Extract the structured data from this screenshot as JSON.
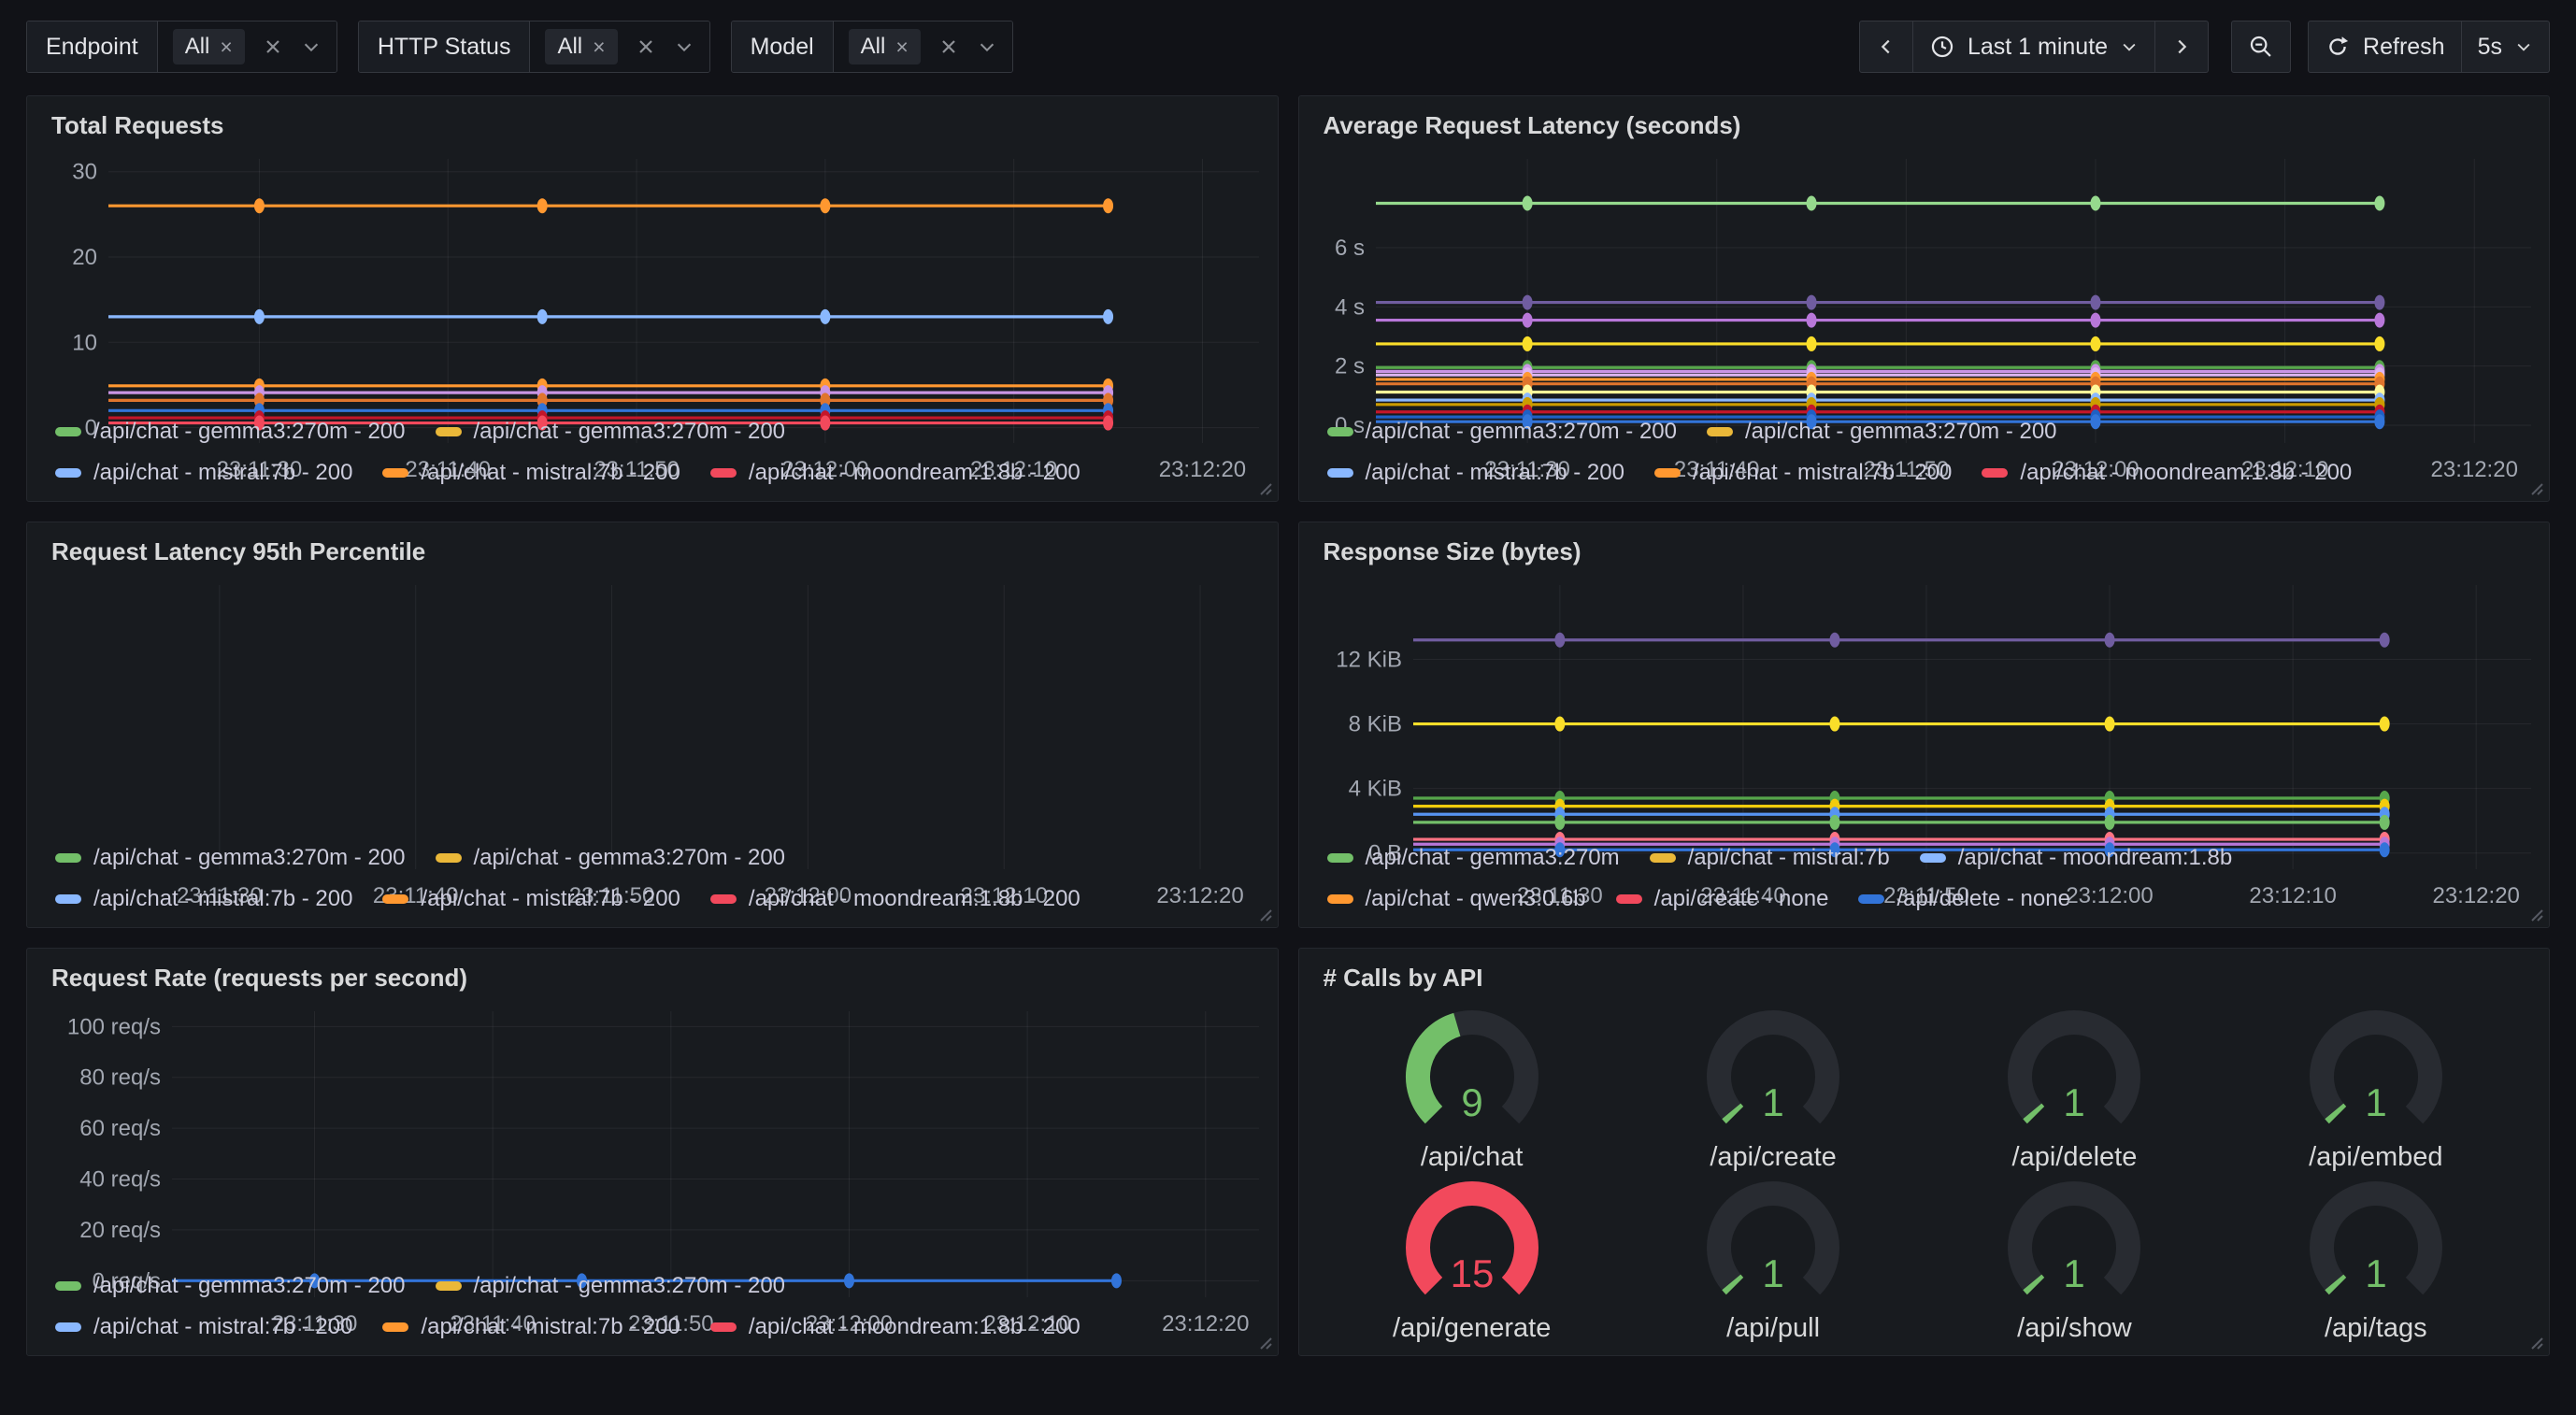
{
  "toolbar": {
    "filters": [
      {
        "label": "Endpoint",
        "value": "All"
      },
      {
        "label": "HTTP Status",
        "value": "All"
      },
      {
        "label": "Model",
        "value": "All"
      }
    ],
    "time": {
      "range_label": "Last 1 minute",
      "refresh_label": "Refresh",
      "interval": "5s"
    }
  },
  "palette": {
    "page_bg": "#111217",
    "panel_bg": "#181B1F",
    "green": "#73BF69",
    "red": "#F2495C",
    "yellow": "#EAB839",
    "orange": "#FF9830",
    "blue": "#5794F2",
    "text": "#D8D9DA",
    "axis_text": "#A2A7B1"
  },
  "panels": [
    {
      "type": "timeseries",
      "title": "Total Requests",
      "margin_left": 87,
      "h_grid": true,
      "y_min": -1.8,
      "y_max": 31.5,
      "y_ticks": [
        {
          "v": 30,
          "label": "30"
        },
        {
          "v": 20,
          "label": "20"
        },
        {
          "v": 10,
          "label": "10"
        },
        {
          "v": 0,
          "label": "0"
        }
      ],
      "x_ticks": [
        "23:11:30",
        "23:11:40",
        "23:11:50",
        "23:12:00",
        "23:12:10",
        "23:12:20"
      ],
      "series": [
        {
          "color": "#FF9830",
          "value": 26
        },
        {
          "color": "#8AB8FF",
          "value": 13
        },
        {
          "color": "#FF9830",
          "value": 4.9
        },
        {
          "color": "#CA95E5",
          "value": 4.1
        },
        {
          "color": "#E0752D",
          "value": 3.2
        },
        {
          "color": "#3274D9",
          "value": 2.0
        },
        {
          "color": "#C4162A",
          "value": 1.15
        },
        {
          "color": "#F2495C",
          "value": 0.55
        }
      ],
      "legend": [
        [
          {
            "color": "#73BF69",
            "label": "/api/chat - gemma3:270m - 200"
          },
          {
            "color": "#EAB839",
            "label": "/api/chat - gemma3:270m - 200"
          }
        ],
        [
          {
            "color": "#8AB8FF",
            "label": "/api/chat - mistral:7b - 200"
          },
          {
            "color": "#FF9830",
            "label": "/api/chat - mistral:7b - 200"
          },
          {
            "color": "#F2495C",
            "label": "/api/chat - moondream:1.8b - 200"
          }
        ]
      ]
    },
    {
      "type": "timeseries",
      "title": "Average Request Latency (seconds)",
      "margin_left": 82,
      "h_grid": true,
      "y_min": -0.6,
      "y_max": 9.0,
      "y_ticks": [
        {
          "v": 6,
          "label": "6 s"
        },
        {
          "v": 4,
          "label": "4 s"
        },
        {
          "v": 2,
          "label": "2 s"
        },
        {
          "v": 0,
          "label": "0 s"
        }
      ],
      "x_ticks": [
        "23:11:30",
        "23:11:40",
        "23:11:50",
        "23:12:00",
        "23:12:10",
        "23:12:20"
      ],
      "series": [
        {
          "color": "#96D98D",
          "value": 7.5
        },
        {
          "color": "#705DA0",
          "value": 4.15
        },
        {
          "color": "#B877D9",
          "value": 3.55
        },
        {
          "color": "#FADE2A",
          "value": 2.75
        },
        {
          "color": "#56A64B",
          "value": 1.95
        },
        {
          "color": "#CA95E5",
          "value": 1.82
        },
        {
          "color": "#DEB6F2",
          "value": 1.7
        },
        {
          "color": "#FF9830",
          "value": 1.55
        },
        {
          "color": "#E0752D",
          "value": 1.4
        },
        {
          "color": "#FFF899",
          "value": 1.12
        },
        {
          "color": "#8AB8FF",
          "value": 0.85
        },
        {
          "color": "#CC9D00",
          "value": 0.7
        },
        {
          "color": "#C4162A",
          "value": 0.45
        },
        {
          "color": "#1F60C4",
          "value": 0.28
        },
        {
          "color": "#3274D9",
          "value": 0.12
        }
      ],
      "legend": [
        [
          {
            "color": "#73BF69",
            "label": "/api/chat - gemma3:270m - 200"
          },
          {
            "color": "#EAB839",
            "label": "/api/chat - gemma3:270m - 200"
          }
        ],
        [
          {
            "color": "#8AB8FF",
            "label": "/api/chat - mistral:7b - 200"
          },
          {
            "color": "#FF9830",
            "label": "/api/chat - mistral:7b - 200"
          },
          {
            "color": "#F2495C",
            "label": "/api/chat - moondream:1.8b - 200"
          }
        ]
      ]
    },
    {
      "type": "timeseries",
      "title": "Request Latency 95th Percentile",
      "margin_left": 38,
      "h_grid": false,
      "y_min": 0,
      "y_max": 1,
      "y_ticks": [],
      "x_ticks": [
        "23:11:30",
        "23:11:40",
        "23:11:50",
        "23:12:00",
        "23:12:10",
        "23:12:20"
      ],
      "series": [],
      "legend": [
        [
          {
            "color": "#73BF69",
            "label": "/api/chat - gemma3:270m - 200"
          },
          {
            "color": "#EAB839",
            "label": "/api/chat - gemma3:270m - 200"
          }
        ],
        [
          {
            "color": "#8AB8FF",
            "label": "/api/chat - mistral:7b - 200"
          },
          {
            "color": "#FF9830",
            "label": "/api/chat - mistral:7b - 200"
          },
          {
            "color": "#F2495C",
            "label": "/api/chat - moondream:1.8b - 200"
          }
        ]
      ]
    },
    {
      "type": "timeseries",
      "title": "Response Size (bytes)",
      "margin_left": 122,
      "h_grid": true,
      "y_min": -1.0,
      "y_max": 16.6,
      "y_ticks": [
        {
          "v": 12,
          "label": "12 KiB"
        },
        {
          "v": 8,
          "label": "8 KiB"
        },
        {
          "v": 4,
          "label": "4 KiB"
        },
        {
          "v": 0,
          "label": "0 B"
        }
      ],
      "x_ticks": [
        "23:11:30",
        "23:11:40",
        "23:11:50",
        "23:12:00",
        "23:12:10",
        "23:12:20"
      ],
      "series": [
        {
          "color": "#705DA0",
          "value": 13.2
        },
        {
          "color": "#FADE2A",
          "value": 8.0
        },
        {
          "color": "#56A64B",
          "value": 3.4
        },
        {
          "color": "#F2CC0C",
          "value": 2.9
        },
        {
          "color": "#5794F2",
          "value": 2.4
        },
        {
          "color": "#73BF69",
          "value": 1.9
        },
        {
          "color": "#FF7383",
          "value": 0.85
        },
        {
          "color": "#B877D9",
          "value": 0.55
        },
        {
          "color": "#3274D9",
          "value": 0.2
        }
      ],
      "legend": [
        [
          {
            "color": "#73BF69",
            "label": "/api/chat - gemma3:270m"
          },
          {
            "color": "#EAB839",
            "label": "/api/chat - mistral:7b"
          },
          {
            "color": "#8AB8FF",
            "label": "/api/chat - moondream:1.8b"
          }
        ],
        [
          {
            "color": "#FF9830",
            "label": "/api/chat - qwen3:0.6b"
          },
          {
            "color": "#F2495C",
            "label": "/api/create - none"
          },
          {
            "color": "#3274D9",
            "label": "/api/delete - none"
          }
        ]
      ]
    },
    {
      "type": "timeseries",
      "title": "Request Rate (requests per second)",
      "margin_left": 155,
      "h_grid": true,
      "y_min": -6.5,
      "y_max": 106,
      "y_ticks": [
        {
          "v": 100,
          "label": "100 req/s"
        },
        {
          "v": 80,
          "label": "80 req/s"
        },
        {
          "v": 60,
          "label": "60 req/s"
        },
        {
          "v": 40,
          "label": "40 req/s"
        },
        {
          "v": 20,
          "label": "20 req/s"
        },
        {
          "v": 0,
          "label": "0 req/s"
        }
      ],
      "x_ticks": [
        "23:11:30",
        "23:11:40",
        "23:11:50",
        "23:12:00",
        "23:12:10",
        "23:12:20"
      ],
      "series": [
        {
          "color": "#3274D9",
          "value": 0
        }
      ],
      "legend": [
        [
          {
            "color": "#73BF69",
            "label": "/api/chat - gemma3:270m - 200"
          },
          {
            "color": "#EAB839",
            "label": "/api/chat - gemma3:270m - 200"
          }
        ],
        [
          {
            "color": "#8AB8FF",
            "label": "/api/chat - mistral:7b - 200"
          },
          {
            "color": "#FF9830",
            "label": "/api/chat - mistral:7b - 200"
          },
          {
            "color": "#F2495C",
            "label": "/api/chat - moondream:1.8b - 200"
          }
        ]
      ]
    },
    {
      "type": "gauges",
      "title": "# Calls by API",
      "gauges": [
        {
          "label": "/api/chat",
          "value": "9",
          "fraction": 0.44,
          "color": "#73BF69"
        },
        {
          "label": "/api/create",
          "value": "1",
          "fraction": 0.02,
          "color": "#73BF69"
        },
        {
          "label": "/api/delete",
          "value": "1",
          "fraction": 0.02,
          "color": "#73BF69"
        },
        {
          "label": "/api/embed",
          "value": "1",
          "fraction": 0.02,
          "color": "#73BF69"
        },
        {
          "label": "/api/generate",
          "value": "15",
          "fraction": 1.0,
          "color": "#F2495C"
        },
        {
          "label": "/api/pull",
          "value": "1",
          "fraction": 0.02,
          "color": "#73BF69"
        },
        {
          "label": "/api/show",
          "value": "1",
          "fraction": 0.02,
          "color": "#73BF69"
        },
        {
          "label": "/api/tags",
          "value": "1",
          "fraction": 0.02,
          "color": "#73BF69"
        }
      ]
    }
  ]
}
